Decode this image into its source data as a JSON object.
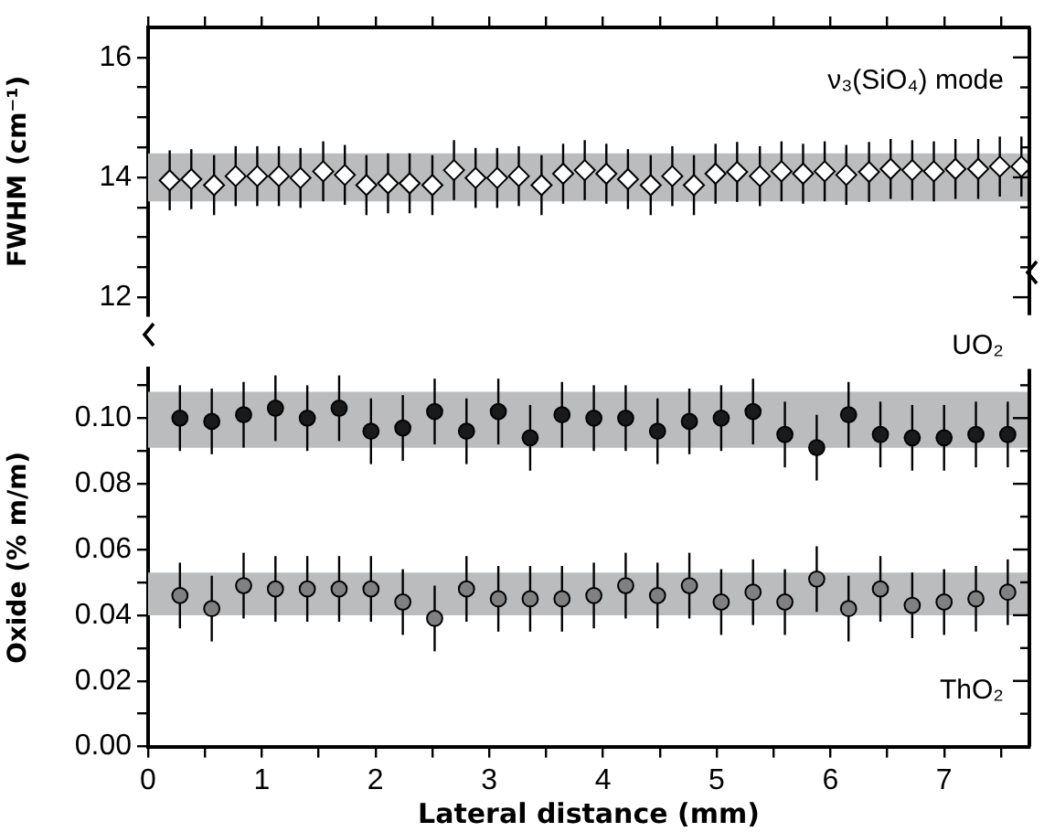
{
  "chart_data": [
    {
      "type": "scatter",
      "ylabel": "FWHM (cm⁻¹)",
      "xlim": [
        0,
        7.75
      ],
      "ylim": [
        11.7,
        16.5
      ],
      "xticks": [
        0,
        {
          "value": 0.5,
          "label": null
        },
        1,
        {
          "value": 1.5,
          "label": null
        },
        2,
        {
          "value": 2.5,
          "label": null
        },
        3,
        {
          "value": 3.5,
          "label": null
        },
        4,
        {
          "value": 4.5,
          "label": null
        },
        5,
        {
          "value": 5.5,
          "label": null
        },
        6,
        {
          "value": 6.5,
          "label": null
        },
        7,
        {
          "value": 7.5,
          "label": null
        }
      ],
      "yticks": [
        12,
        {
          "value": 12.5,
          "label": null
        },
        {
          "value": 13,
          "label": null
        },
        {
          "value": 13.5,
          "label": null
        },
        14,
        {
          "value": 14.5,
          "label": null
        },
        {
          "value": 15,
          "label": null
        },
        {
          "value": 15.5,
          "label": null
        },
        16
      ],
      "tick_labels": "y",
      "marker": "diamond",
      "bands": [
        {
          "axis": "y",
          "from": 13.6,
          "to": 14.4,
          "color": "#bbbcbe"
        }
      ],
      "series": [
        {
          "name": "ν₃(SiO₄) mode",
          "color": "#ffffff",
          "x": [
            0.19,
            0.38,
            0.58,
            0.77,
            0.96,
            1.15,
            1.34,
            1.54,
            1.73,
            1.92,
            2.11,
            2.3,
            2.5,
            2.69,
            2.88,
            3.07,
            3.26,
            3.46,
            3.65,
            3.84,
            4.03,
            4.22,
            4.42,
            4.61,
            4.8,
            4.99,
            5.18,
            5.38,
            5.57,
            5.76,
            5.95,
            6.14,
            6.34,
            6.53,
            6.72,
            6.91,
            7.1,
            7.3,
            7.49,
            7.68
          ],
          "values": [
            13.95,
            13.97,
            13.87,
            14.02,
            14.02,
            14.02,
            13.99,
            14.1,
            14.04,
            13.87,
            13.9,
            13.9,
            13.87,
            14.12,
            13.99,
            13.99,
            14.02,
            13.87,
            14.06,
            14.12,
            14.06,
            13.97,
            13.87,
            14.02,
            13.87,
            14.06,
            14.09,
            14.02,
            14.1,
            14.06,
            14.1,
            14.04,
            14.09,
            14.14,
            14.12,
            14.1,
            14.14,
            14.14,
            14.18,
            14.18
          ],
          "errors": [
            0.5,
            0.5,
            0.5,
            0.5,
            0.5,
            0.5,
            0.5,
            0.5,
            0.5,
            0.5,
            0.5,
            0.5,
            0.5,
            0.5,
            0.5,
            0.5,
            0.5,
            0.5,
            0.5,
            0.5,
            0.5,
            0.5,
            0.5,
            0.5,
            0.5,
            0.5,
            0.5,
            0.5,
            0.5,
            0.5,
            0.5,
            0.5,
            0.5,
            0.5,
            0.5,
            0.5,
            0.5,
            0.5,
            0.5,
            0.5
          ]
        }
      ]
    },
    {
      "type": "scatter",
      "xlabel": "Lateral distance (mm)",
      "ylabel": "Oxide (% m/m)",
      "xlim": [
        0,
        7.75
      ],
      "ylim": [
        0,
        0.115
      ],
      "xticks": [
        0,
        {
          "value": 0.5,
          "label": null
        },
        1,
        {
          "value": 1.5,
          "label": null
        },
        2,
        {
          "value": 2.5,
          "label": null
        },
        3,
        {
          "value": 3.5,
          "label": null
        },
        4,
        {
          "value": 4.5,
          "label": null
        },
        5,
        {
          "value": 5.5,
          "label": null
        },
        6,
        {
          "value": 6.5,
          "label": null
        },
        7,
        {
          "value": 7.5,
          "label": null
        }
      ],
      "yticks": [
        {
          "value": 0,
          "label": "0.00"
        },
        {
          "value": 0.01,
          "label": null
        },
        {
          "value": 0.02,
          "label": "0.02"
        },
        {
          "value": 0.03,
          "label": null
        },
        {
          "value": 0.04,
          "label": "0.04"
        },
        {
          "value": 0.05,
          "label": null
        },
        {
          "value": 0.06,
          "label": "0.06"
        },
        {
          "value": 0.07,
          "label": null
        },
        {
          "value": 0.08,
          "label": "0.08"
        },
        {
          "value": 0.09,
          "label": null
        },
        {
          "value": 0.1,
          "label": "0.10"
        },
        {
          "value": 0.11,
          "label": null
        }
      ],
      "marker": "circle",
      "bands": [
        {
          "axis": "y",
          "from": 0.091,
          "to": 0.108,
          "color": "#bbbcbe"
        },
        {
          "axis": "y",
          "from": 0.04,
          "to": 0.053,
          "color": "#bbbcbe"
        }
      ],
      "series": [
        {
          "name": "UO₂",
          "color": "#1a1a1a",
          "x": [
            0.28,
            0.56,
            0.84,
            1.12,
            1.4,
            1.68,
            1.96,
            2.24,
            2.52,
            2.8,
            3.08,
            3.36,
            3.64,
            3.92,
            4.2,
            4.48,
            4.76,
            5.04,
            5.32,
            5.6,
            5.88,
            6.16,
            6.44,
            6.72,
            7.0,
            7.28,
            7.56
          ],
          "values": [
            0.1,
            0.099,
            0.101,
            0.103,
            0.1,
            0.103,
            0.096,
            0.097,
            0.102,
            0.096,
            0.102,
            0.094,
            0.101,
            0.1,
            0.1,
            0.096,
            0.099,
            0.1,
            0.102,
            0.095,
            0.091,
            0.101,
            0.095,
            0.094,
            0.094,
            0.095,
            0.095
          ],
          "errors": [
            0.01,
            0.01,
            0.01,
            0.01,
            0.01,
            0.01,
            0.01,
            0.01,
            0.01,
            0.01,
            0.01,
            0.01,
            0.01,
            0.01,
            0.01,
            0.01,
            0.01,
            0.01,
            0.01,
            0.01,
            0.01,
            0.01,
            0.01,
            0.01,
            0.01,
            0.01,
            0.01
          ]
        },
        {
          "name": "ThO₂",
          "color": "#808080",
          "x": [
            0.28,
            0.56,
            0.84,
            1.12,
            1.4,
            1.68,
            1.96,
            2.24,
            2.52,
            2.8,
            3.08,
            3.36,
            3.64,
            3.92,
            4.2,
            4.48,
            4.76,
            5.04,
            5.32,
            5.6,
            5.88,
            6.16,
            6.44,
            6.72,
            7.0,
            7.28,
            7.56
          ],
          "values": [
            0.046,
            0.042,
            0.049,
            0.048,
            0.048,
            0.048,
            0.048,
            0.044,
            0.039,
            0.048,
            0.045,
            0.045,
            0.045,
            0.046,
            0.049,
            0.046,
            0.049,
            0.044,
            0.047,
            0.044,
            0.051,
            0.042,
            0.048,
            0.043,
            0.044,
            0.045,
            0.047
          ],
          "errors": [
            0.01,
            0.01,
            0.01,
            0.01,
            0.01,
            0.01,
            0.01,
            0.01,
            0.01,
            0.01,
            0.01,
            0.01,
            0.01,
            0.01,
            0.01,
            0.01,
            0.01,
            0.01,
            0.01,
            0.01,
            0.01,
            0.01,
            0.01,
            0.01,
            0.01,
            0.01,
            0.01
          ]
        }
      ]
    }
  ]
}
